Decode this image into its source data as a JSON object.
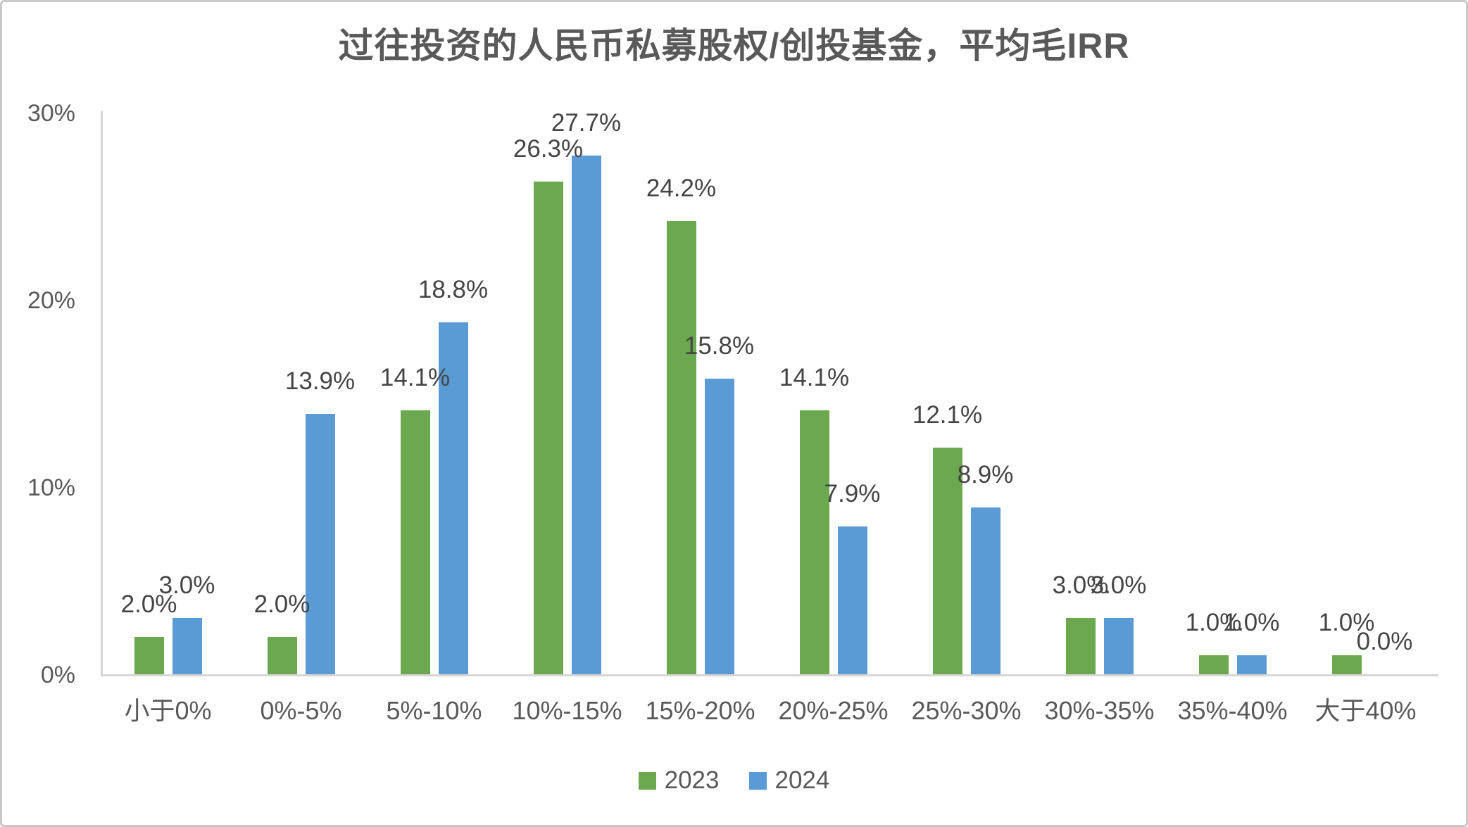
{
  "title": "过往投资的人民币私募股权/创投基金，平均毛IRR",
  "chart_data": {
    "type": "bar",
    "title": "过往投资的人民币私募股权/创投基金，平均毛IRR",
    "categories": [
      "小于0%",
      "0%-5%",
      "5%-10%",
      "10%-15%",
      "15%-20%",
      "20%-25%",
      "25%-30%",
      "30%-35%",
      "35%-40%",
      "大于40%"
    ],
    "series": [
      {
        "name": "2023",
        "color": "#6BA84F",
        "values": [
          2.0,
          2.0,
          14.1,
          26.3,
          24.2,
          14.1,
          12.1,
          3.0,
          1.0,
          1.0
        ],
        "labels": [
          "2.0%",
          "2.0%",
          "14.1%",
          "26.3%",
          "24.2%",
          "14.1%",
          "12.1%",
          "3.0%",
          "1.0%",
          "1.0%"
        ]
      },
      {
        "name": "2024",
        "color": "#5B9BD5",
        "values": [
          3.0,
          13.9,
          18.8,
          27.7,
          15.8,
          7.9,
          8.9,
          3.0,
          1.0,
          0.0
        ],
        "labels": [
          "3.0%",
          "13.9%",
          "18.8%",
          "27.7%",
          "15.8%",
          "7.9%",
          "8.9%",
          "3.0%",
          "1.0%",
          "0.0%"
        ]
      }
    ],
    "yticks": [
      {
        "value": 0,
        "label": "0%"
      },
      {
        "value": 10,
        "label": "10%"
      },
      {
        "value": 20,
        "label": "20%"
      },
      {
        "value": 30,
        "label": "30%"
      }
    ],
    "ylim": [
      0,
      30
    ],
    "xlabel": "",
    "ylabel": "",
    "grid": false,
    "legend_position": "bottom",
    "axis_color": "#d6d6d6",
    "text_color": "#595959",
    "data_label_color": "#454545"
  }
}
